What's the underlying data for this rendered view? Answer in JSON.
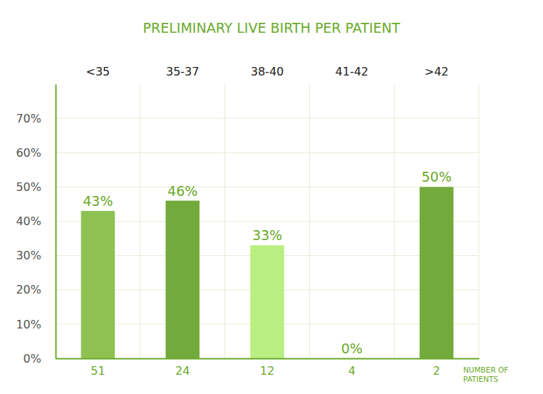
{
  "chart_data": {
    "type": "bar",
    "title": "PRELIMINARY LIVE BIRTH PER PATIENT",
    "categories": [
      "<35",
      "35-37",
      "38-40",
      "41-42",
      ">42"
    ],
    "values": [
      43,
      46,
      33,
      0,
      50
    ],
    "value_labels": [
      "43%",
      "46%",
      "33%",
      "0%",
      "50%"
    ],
    "data_labels": true,
    "colors": [
      "#8dc253",
      "#72aa3b",
      "#b9ef80",
      "#8dc253",
      "#72aa3b"
    ],
    "ylim": [
      0,
      80
    ],
    "yticks": [
      {
        "value": 0,
        "label": "0%"
      },
      {
        "value": 10,
        "label": "10%"
      },
      {
        "value": 20,
        "label": "20%"
      },
      {
        "value": 30,
        "label": "30%"
      },
      {
        "value": 40,
        "label": "40%"
      },
      {
        "value": 50,
        "label": "50%"
      },
      {
        "value": 60,
        "label": "60%"
      },
      {
        "value": 70,
        "label": "70%"
      }
    ],
    "grid": true,
    "patients": {
      "label": "NUMBER OF PATIENTS",
      "values": [
        51,
        24,
        12,
        4,
        2
      ]
    }
  }
}
